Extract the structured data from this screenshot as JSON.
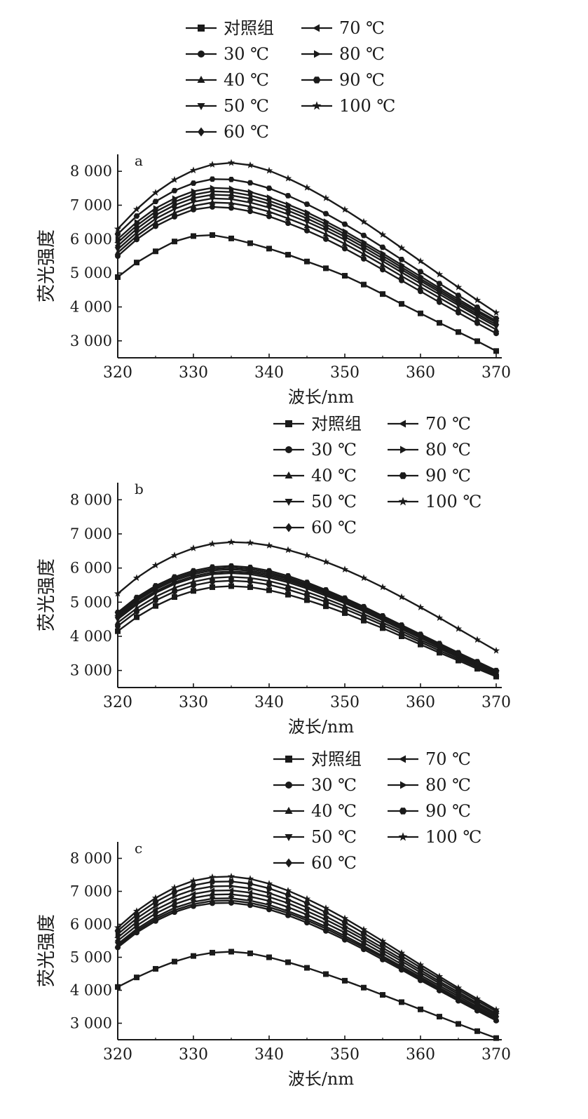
{
  "legend_marker_color": "#1a1a1a",
  "chart_data": [
    {
      "type": "line",
      "panel_label": "a",
      "xlabel": "波长/nm",
      "ylabel": "荧光强度",
      "xlim": [
        320,
        370
      ],
      "ylim": [
        2500,
        8500
      ],
      "x_ticks": [
        320,
        330,
        340,
        350,
        360,
        370
      ],
      "x_tick_labels": [
        "320",
        "330",
        "340",
        "350",
        "360",
        "370"
      ],
      "y_ticks": [
        3000,
        4000,
        5000,
        6000,
        7000,
        8000
      ],
      "y_tick_labels": [
        "3 000",
        "4 000",
        "5 000",
        "6 000",
        "7 000",
        "8 000"
      ],
      "legend_position": "top",
      "x": [
        320,
        322.5,
        325,
        327.5,
        330,
        332.5,
        335,
        337.5,
        340,
        342.5,
        345,
        347.5,
        350,
        352.5,
        355,
        357.5,
        360,
        362.5,
        365,
        367.5,
        370
      ],
      "series": [
        {
          "name": "对照组",
          "marker": "square",
          "values": [
            4880,
            5310,
            5640,
            5930,
            6090,
            6120,
            6020,
            5880,
            5720,
            5540,
            5340,
            5140,
            4920,
            4660,
            4380,
            4090,
            3810,
            3530,
            3260,
            2990,
            2700
          ]
        },
        {
          "name": "30 ℃",
          "marker": "circle",
          "values": [
            5500,
            5990,
            6380,
            6660,
            6870,
            6950,
            6920,
            6820,
            6670,
            6470,
            6250,
            6000,
            5720,
            5420,
            5100,
            4780,
            4460,
            4140,
            3830,
            3520,
            3220
          ]
        },
        {
          "name": "40 ℃",
          "marker": "triangle-up",
          "values": [
            5600,
            6090,
            6490,
            6770,
            6980,
            7080,
            7060,
            6960,
            6810,
            6610,
            6390,
            6140,
            5860,
            5560,
            5240,
            4910,
            4590,
            4270,
            3950,
            3640,
            3330
          ]
        },
        {
          "name": "50 ℃",
          "marker": "triangle-down",
          "values": [
            5700,
            6190,
            6600,
            6890,
            7100,
            7200,
            7180,
            7080,
            6930,
            6730,
            6510,
            6260,
            5980,
            5670,
            5350,
            5020,
            4690,
            4370,
            4050,
            3730,
            3420
          ]
        },
        {
          "name": "60 ℃",
          "marker": "diamond",
          "values": [
            5800,
            6300,
            6710,
            7000,
            7210,
            7310,
            7290,
            7190,
            7040,
            6840,
            6610,
            6350,
            6070,
            5760,
            5430,
            5100,
            4770,
            4440,
            4110,
            3790,
            3480
          ]
        },
        {
          "name": "70 ℃",
          "marker": "triangle-left",
          "values": [
            5900,
            6400,
            6810,
            7100,
            7310,
            7410,
            7390,
            7290,
            7130,
            6930,
            6700,
            6440,
            6150,
            5840,
            5510,
            5170,
            4830,
            4500,
            4170,
            3850,
            3540
          ]
        },
        {
          "name": "80 ℃",
          "marker": "triangle-right",
          "values": [
            6000,
            6500,
            6910,
            7200,
            7410,
            7510,
            7490,
            7390,
            7230,
            7020,
            6790,
            6520,
            6230,
            5910,
            5580,
            5240,
            4900,
            4560,
            4230,
            3900,
            3590
          ]
        },
        {
          "name": "90 ℃",
          "marker": "hexagon",
          "values": [
            6150,
            6680,
            7110,
            7430,
            7650,
            7770,
            7760,
            7660,
            7500,
            7280,
            7030,
            6750,
            6440,
            6110,
            5760,
            5400,
            5040,
            4690,
            4340,
            3990,
            3660
          ]
        },
        {
          "name": "100 ℃",
          "marker": "star",
          "values": [
            6300,
            6880,
            7370,
            7750,
            8030,
            8200,
            8250,
            8180,
            8020,
            7790,
            7520,
            7210,
            6870,
            6510,
            6130,
            5740,
            5350,
            4960,
            4580,
            4200,
            3830
          ]
        }
      ]
    },
    {
      "type": "line",
      "panel_label": "b",
      "xlabel": "波长/nm",
      "ylabel": "荧光强度",
      "xlim": [
        320,
        370
      ],
      "ylim": [
        2500,
        8500
      ],
      "x_ticks": [
        320,
        330,
        340,
        350,
        360,
        370
      ],
      "x_tick_labels": [
        "320",
        "330",
        "340",
        "350",
        "360",
        "370"
      ],
      "y_ticks": [
        3000,
        4000,
        5000,
        6000,
        7000,
        8000
      ],
      "y_tick_labels": [
        "3 000",
        "4 000",
        "5 000",
        "6 000",
        "7 000",
        "8 000"
      ],
      "legend_position": "top-right",
      "x": [
        320,
        322.5,
        325,
        327.5,
        330,
        332.5,
        335,
        337.5,
        340,
        342.5,
        345,
        347.5,
        350,
        352.5,
        355,
        357.5,
        360,
        362.5,
        365,
        367.5,
        370
      ],
      "series": [
        {
          "name": "对照组",
          "marker": "square",
          "values": [
            4150,
            4560,
            4890,
            5150,
            5330,
            5440,
            5470,
            5440,
            5350,
            5220,
            5060,
            4880,
            4680,
            4460,
            4240,
            4000,
            3760,
            3520,
            3290,
            3050,
            2820
          ]
        },
        {
          "name": "30 ℃",
          "marker": "circle",
          "values": [
            4300,
            4720,
            5050,
            5310,
            5490,
            5600,
            5630,
            5600,
            5510,
            5370,
            5200,
            5010,
            4800,
            4570,
            4330,
            4080,
            3830,
            3580,
            3340,
            3100,
            2860
          ]
        },
        {
          "name": "40 ℃",
          "marker": "triangle-up",
          "values": [
            4400,
            4820,
            5160,
            5420,
            5600,
            5710,
            5740,
            5710,
            5620,
            5480,
            5300,
            5100,
            4880,
            4650,
            4400,
            4150,
            3890,
            3640,
            3390,
            3140,
            2890
          ]
        },
        {
          "name": "50 ℃",
          "marker": "triangle-down",
          "values": [
            4500,
            4930,
            5270,
            5530,
            5710,
            5820,
            5850,
            5820,
            5720,
            5580,
            5400,
            5190,
            4970,
            4730,
            4470,
            4210,
            3950,
            3690,
            3430,
            3170,
            2920
          ]
        },
        {
          "name": "60 ℃",
          "marker": "diamond",
          "values": [
            4550,
            4980,
            5320,
            5580,
            5760,
            5870,
            5900,
            5870,
            5770,
            5630,
            5450,
            5240,
            5010,
            4770,
            4510,
            4250,
            3980,
            3720,
            3460,
            3200,
            2940
          ]
        },
        {
          "name": "70 ℃",
          "marker": "triangle-left",
          "values": [
            4600,
            5040,
            5380,
            5640,
            5820,
            5930,
            5960,
            5920,
            5820,
            5680,
            5490,
            5280,
            5050,
            4800,
            4540,
            4280,
            4010,
            3740,
            3480,
            3220,
            2960
          ]
        },
        {
          "name": "80 ℃",
          "marker": "triangle-right",
          "values": [
            4650,
            5090,
            5430,
            5690,
            5870,
            5980,
            6010,
            5970,
            5870,
            5720,
            5530,
            5320,
            5090,
            4840,
            4570,
            4300,
            4030,
            3760,
            3500,
            3240,
            2980
          ]
        },
        {
          "name": "90 ℃",
          "marker": "hexagon",
          "values": [
            4700,
            5140,
            5480,
            5740,
            5920,
            6030,
            6060,
            6020,
            5920,
            5770,
            5580,
            5360,
            5120,
            4870,
            4600,
            4330,
            4060,
            3790,
            3520,
            3260,
            3000
          ]
        },
        {
          "name": "100 ℃",
          "marker": "star",
          "values": [
            5250,
            5710,
            6080,
            6370,
            6580,
            6710,
            6760,
            6740,
            6660,
            6530,
            6370,
            6180,
            5960,
            5710,
            5440,
            5150,
            4850,
            4540,
            4220,
            3900,
            3580
          ]
        }
      ]
    },
    {
      "type": "line",
      "panel_label": "c",
      "xlabel": "波长/nm",
      "ylabel": "荧光强度",
      "xlim": [
        320,
        370
      ],
      "ylim": [
        2500,
        8500
      ],
      "x_ticks": [
        320,
        330,
        340,
        350,
        360,
        370
      ],
      "x_tick_labels": [
        "320",
        "330",
        "340",
        "350",
        "360",
        "370"
      ],
      "y_ticks": [
        3000,
        4000,
        5000,
        6000,
        7000,
        8000
      ],
      "y_tick_labels": [
        "3 000",
        "4 000",
        "5 000",
        "6 000",
        "7 000",
        "8 000"
      ],
      "legend_position": "top-right",
      "x": [
        320,
        322.5,
        325,
        327.5,
        330,
        332.5,
        335,
        337.5,
        340,
        342.5,
        345,
        347.5,
        350,
        352.5,
        355,
        357.5,
        360,
        362.5,
        365,
        367.5,
        370
      ],
      "series": [
        {
          "name": "对照组",
          "marker": "square",
          "values": [
            4100,
            4390,
            4650,
            4870,
            5040,
            5140,
            5170,
            5120,
            5000,
            4850,
            4680,
            4490,
            4290,
            4080,
            3860,
            3640,
            3420,
            3200,
            2980,
            2760,
            2550
          ]
        },
        {
          "name": "30 ℃",
          "marker": "circle",
          "values": [
            5300,
            5750,
            6100,
            6370,
            6550,
            6640,
            6650,
            6580,
            6450,
            6270,
            6050,
            5800,
            5530,
            5240,
            4930,
            4620,
            4300,
            3990,
            3680,
            3380,
            3080
          ]
        },
        {
          "name": "40 ℃",
          "marker": "triangle-up",
          "values": [
            5350,
            5800,
            6160,
            6430,
            6610,
            6710,
            6720,
            6650,
            6520,
            6340,
            6120,
            5870,
            5590,
            5300,
            4990,
            4670,
            4350,
            4030,
            3720,
            3410,
            3110
          ]
        },
        {
          "name": "50 ℃",
          "marker": "triangle-down",
          "values": [
            5400,
            5860,
            6220,
            6500,
            6680,
            6780,
            6790,
            6720,
            6590,
            6400,
            6180,
            5930,
            5650,
            5350,
            5040,
            4720,
            4400,
            4080,
            3760,
            3450,
            3150
          ]
        },
        {
          "name": "60 ℃",
          "marker": "diamond",
          "values": [
            5500,
            5960,
            6330,
            6610,
            6800,
            6900,
            6910,
            6840,
            6710,
            6520,
            6290,
            6030,
            5750,
            5440,
            5120,
            4790,
            4460,
            4140,
            3820,
            3500,
            3200
          ]
        },
        {
          "name": "70 ℃",
          "marker": "triangle-left",
          "values": [
            5600,
            6070,
            6440,
            6720,
            6920,
            7020,
            7030,
            6960,
            6830,
            6640,
            6400,
            6140,
            5850,
            5540,
            5210,
            4880,
            4540,
            4210,
            3880,
            3560,
            3250
          ]
        },
        {
          "name": "80 ℃",
          "marker": "triangle-right",
          "values": [
            5700,
            6180,
            6560,
            6850,
            7050,
            7150,
            7160,
            7090,
            6950,
            6750,
            6510,
            6240,
            5940,
            5620,
            5290,
            4950,
            4610,
            4270,
            3940,
            3610,
            3300
          ]
        },
        {
          "name": "90 ℃",
          "marker": "hexagon",
          "values": [
            5800,
            6290,
            6680,
            6980,
            7180,
            7290,
            7300,
            7230,
            7090,
            6890,
            6640,
            6360,
            6060,
            5730,
            5390,
            5040,
            4690,
            4350,
            4010,
            3680,
            3360
          ]
        },
        {
          "name": "100 ℃",
          "marker": "star",
          "values": [
            5900,
            6400,
            6800,
            7110,
            7320,
            7430,
            7450,
            7380,
            7230,
            7020,
            6770,
            6490,
            6180,
            5840,
            5490,
            5130,
            4770,
            4420,
            4070,
            3740,
            3410
          ]
        }
      ]
    }
  ]
}
